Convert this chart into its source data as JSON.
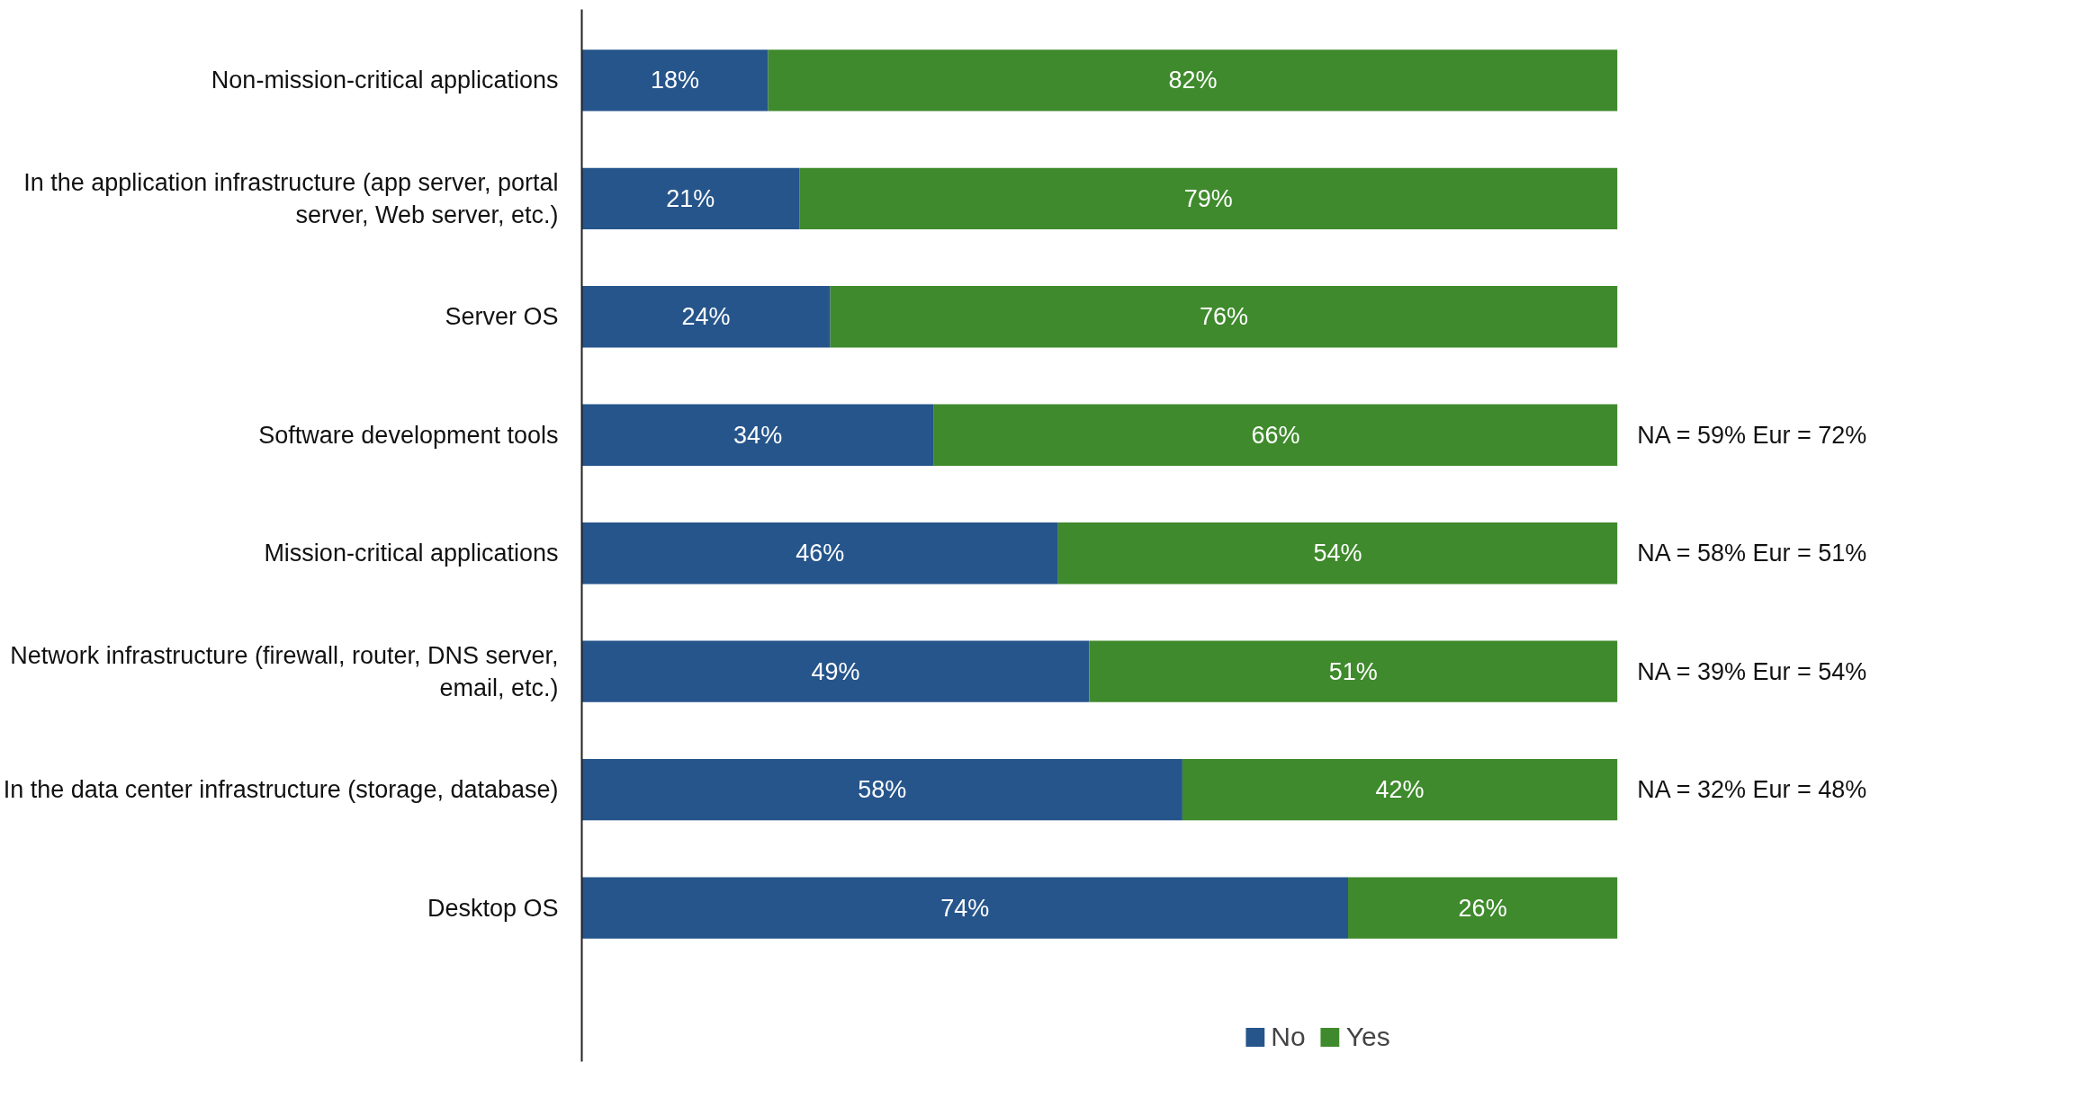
{
  "chart_data": {
    "type": "bar",
    "orientation": "horizontal",
    "stacked": true,
    "categories": [
      "Non-mission-critical applications",
      "In the application infrastructure (app server, portal server, Web server, etc.)",
      "Server OS",
      "Software development tools",
      "Mission-critical applications",
      "Network infrastructure (firewall, router, DNS server, email, etc.)",
      "In the data center infrastructure (storage, database)",
      "Desktop OS"
    ],
    "series": [
      {
        "name": "No",
        "color": "#26558b",
        "values": [
          18,
          21,
          24,
          34,
          46,
          49,
          58,
          74
        ],
        "value_labels": [
          "18%",
          "21%",
          "24%",
          "34%",
          "46%",
          "49%",
          "58%",
          "74%"
        ]
      },
      {
        "name": "Yes",
        "color": "#3f8a2c",
        "values": [
          82,
          79,
          76,
          66,
          54,
          51,
          42,
          26
        ],
        "value_labels": [
          "82%",
          "79%",
          "76%",
          "66%",
          "54%",
          "51%",
          "42%",
          "26%"
        ]
      }
    ],
    "legend": "bottom",
    "grid": false,
    "annotations": [
      "NA = 59% Eur = 72%",
      "NA = 58% Eur = 51%",
      "NA = 39% Eur = 54%",
      "NA = 32% Eur = 48%"
    ]
  }
}
